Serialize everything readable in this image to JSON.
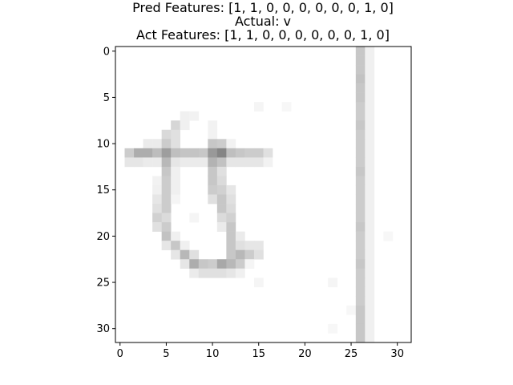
{
  "chart_data": {
    "type": "heatmap",
    "title_lines": [
      "Pred Features: [1, 1, 0, 0, 0, 0, 0, 0, 1, 0]",
      "Actual: v",
      "Act Features: [1, 1, 0, 0, 0, 0, 0, 0, 1, 0]"
    ],
    "pred_features": [
      1,
      1,
      0,
      0,
      0,
      0,
      0,
      0,
      1,
      0
    ],
    "actual_label": "v",
    "act_features": [
      1,
      1,
      0,
      0,
      0,
      0,
      0,
      0,
      1,
      0
    ],
    "xlabel": "",
    "ylabel": "",
    "xlim": [
      -0.5,
      31.5
    ],
    "ylim": [
      31.5,
      -0.5
    ],
    "x_ticks": [
      0,
      5,
      10,
      15,
      20,
      25,
      30
    ],
    "y_ticks": [
      0,
      5,
      10,
      15,
      20,
      25,
      30
    ],
    "colormap": "gray_r",
    "width": 32,
    "height": 32,
    "cells": [
      [
        26,
        0,
        0.22
      ],
      [
        27,
        0,
        0.06
      ],
      [
        26,
        1,
        0.22
      ],
      [
        27,
        1,
        0.06
      ],
      [
        26,
        2,
        0.22
      ],
      [
        27,
        2,
        0.06
      ],
      [
        26,
        3,
        0.24
      ],
      [
        27,
        3,
        0.06
      ],
      [
        26,
        4,
        0.22
      ],
      [
        27,
        4,
        0.06
      ],
      [
        26,
        5,
        0.22
      ],
      [
        27,
        5,
        0.06
      ],
      [
        15,
        6,
        0.04
      ],
      [
        18,
        6,
        0.03
      ],
      [
        26,
        6,
        0.2
      ],
      [
        27,
        6,
        0.06
      ],
      [
        7,
        7,
        0.06
      ],
      [
        8,
        7,
        0.05
      ],
      [
        26,
        7,
        0.2
      ],
      [
        27,
        7,
        0.06
      ],
      [
        6,
        8,
        0.16
      ],
      [
        7,
        8,
        0.06
      ],
      [
        10,
        8,
        0.05
      ],
      [
        26,
        8,
        0.22
      ],
      [
        27,
        8,
        0.06
      ],
      [
        5,
        9,
        0.15
      ],
      [
        6,
        9,
        0.12
      ],
      [
        10,
        9,
        0.05
      ],
      [
        26,
        9,
        0.2
      ],
      [
        27,
        9,
        0.06
      ],
      [
        3,
        10,
        0.08
      ],
      [
        4,
        10,
        0.08
      ],
      [
        5,
        10,
        0.2
      ],
      [
        6,
        10,
        0.12
      ],
      [
        10,
        10,
        0.22
      ],
      [
        11,
        10,
        0.2
      ],
      [
        12,
        10,
        0.05
      ],
      [
        26,
        10,
        0.2
      ],
      [
        27,
        10,
        0.06
      ],
      [
        1,
        11,
        0.2
      ],
      [
        2,
        11,
        0.32
      ],
      [
        3,
        11,
        0.32
      ],
      [
        4,
        11,
        0.26
      ],
      [
        5,
        11,
        0.38
      ],
      [
        6,
        11,
        0.25
      ],
      [
        7,
        11,
        0.23
      ],
      [
        8,
        11,
        0.23
      ],
      [
        9,
        11,
        0.22
      ],
      [
        10,
        11,
        0.4
      ],
      [
        11,
        11,
        0.48
      ],
      [
        12,
        11,
        0.25
      ],
      [
        13,
        11,
        0.22
      ],
      [
        14,
        11,
        0.2
      ],
      [
        15,
        11,
        0.2
      ],
      [
        16,
        11,
        0.12
      ],
      [
        26,
        11,
        0.2
      ],
      [
        27,
        11,
        0.06
      ],
      [
        1,
        12,
        0.1
      ],
      [
        2,
        12,
        0.1
      ],
      [
        3,
        12,
        0.08
      ],
      [
        4,
        12,
        0.08
      ],
      [
        5,
        12,
        0.28
      ],
      [
        6,
        12,
        0.1
      ],
      [
        7,
        12,
        0.08
      ],
      [
        8,
        12,
        0.08
      ],
      [
        9,
        12,
        0.08
      ],
      [
        10,
        12,
        0.3
      ],
      [
        11,
        12,
        0.24
      ],
      [
        12,
        12,
        0.1
      ],
      [
        13,
        12,
        0.1
      ],
      [
        14,
        12,
        0.1
      ],
      [
        15,
        12,
        0.1
      ],
      [
        16,
        12,
        0.05
      ],
      [
        26,
        12,
        0.2
      ],
      [
        27,
        12,
        0.06
      ],
      [
        5,
        13,
        0.22
      ],
      [
        6,
        13,
        0.06
      ],
      [
        10,
        13,
        0.22
      ],
      [
        11,
        13,
        0.12
      ],
      [
        26,
        13,
        0.22
      ],
      [
        27,
        13,
        0.06
      ],
      [
        4,
        14,
        0.05
      ],
      [
        5,
        14,
        0.2
      ],
      [
        6,
        14,
        0.06
      ],
      [
        10,
        14,
        0.22
      ],
      [
        11,
        14,
        0.14
      ],
      [
        26,
        14,
        0.2
      ],
      [
        27,
        14,
        0.06
      ],
      [
        4,
        15,
        0.06
      ],
      [
        5,
        15,
        0.2
      ],
      [
        6,
        15,
        0.06
      ],
      [
        10,
        15,
        0.2
      ],
      [
        11,
        15,
        0.18
      ],
      [
        12,
        15,
        0.1
      ],
      [
        26,
        15,
        0.2
      ],
      [
        27,
        15,
        0.06
      ],
      [
        4,
        16,
        0.1
      ],
      [
        5,
        16,
        0.2
      ],
      [
        6,
        16,
        0.04
      ],
      [
        10,
        16,
        0.12
      ],
      [
        11,
        16,
        0.22
      ],
      [
        12,
        16,
        0.12
      ],
      [
        26,
        16,
        0.2
      ],
      [
        27,
        16,
        0.06
      ],
      [
        4,
        17,
        0.12
      ],
      [
        5,
        17,
        0.2
      ],
      [
        11,
        17,
        0.22
      ],
      [
        12,
        17,
        0.14
      ],
      [
        26,
        17,
        0.2
      ],
      [
        27,
        17,
        0.06
      ],
      [
        4,
        18,
        0.18
      ],
      [
        5,
        18,
        0.14
      ],
      [
        8,
        18,
        0.04
      ],
      [
        11,
        18,
        0.14
      ],
      [
        12,
        18,
        0.18
      ],
      [
        26,
        18,
        0.2
      ],
      [
        27,
        18,
        0.06
      ],
      [
        4,
        19,
        0.12
      ],
      [
        5,
        19,
        0.2
      ],
      [
        11,
        19,
        0.08
      ],
      [
        12,
        19,
        0.22
      ],
      [
        26,
        19,
        0.22
      ],
      [
        27,
        19,
        0.06
      ],
      [
        5,
        20,
        0.24
      ],
      [
        6,
        20,
        0.06
      ],
      [
        12,
        20,
        0.22
      ],
      [
        13,
        20,
        0.08
      ],
      [
        26,
        20,
        0.2
      ],
      [
        27,
        20,
        0.06
      ],
      [
        29,
        20,
        0.03
      ],
      [
        5,
        21,
        0.1
      ],
      [
        6,
        21,
        0.22
      ],
      [
        7,
        21,
        0.06
      ],
      [
        12,
        21,
        0.22
      ],
      [
        13,
        21,
        0.12
      ],
      [
        14,
        21,
        0.1
      ],
      [
        15,
        21,
        0.1
      ],
      [
        26,
        21,
        0.2
      ],
      [
        27,
        21,
        0.06
      ],
      [
        6,
        22,
        0.1
      ],
      [
        7,
        22,
        0.28
      ],
      [
        8,
        22,
        0.12
      ],
      [
        12,
        22,
        0.22
      ],
      [
        13,
        22,
        0.28
      ],
      [
        14,
        22,
        0.2
      ],
      [
        15,
        22,
        0.12
      ],
      [
        26,
        22,
        0.2
      ],
      [
        27,
        22,
        0.06
      ],
      [
        7,
        23,
        0.1
      ],
      [
        8,
        23,
        0.32
      ],
      [
        9,
        23,
        0.22
      ],
      [
        10,
        23,
        0.2
      ],
      [
        11,
        23,
        0.34
      ],
      [
        12,
        23,
        0.28
      ],
      [
        13,
        23,
        0.2
      ],
      [
        14,
        23,
        0.04
      ],
      [
        26,
        23,
        0.22
      ],
      [
        27,
        23,
        0.06
      ],
      [
        8,
        24,
        0.08
      ],
      [
        9,
        24,
        0.12
      ],
      [
        10,
        24,
        0.12
      ],
      [
        11,
        24,
        0.12
      ],
      [
        12,
        24,
        0.1
      ],
      [
        13,
        24,
        0.06
      ],
      [
        26,
        24,
        0.2
      ],
      [
        27,
        24,
        0.06
      ],
      [
        15,
        25,
        0.04
      ],
      [
        23,
        25,
        0.04
      ],
      [
        26,
        25,
        0.2
      ],
      [
        27,
        25,
        0.06
      ],
      [
        26,
        26,
        0.2
      ],
      [
        27,
        26,
        0.06
      ],
      [
        26,
        27,
        0.2
      ],
      [
        27,
        27,
        0.06
      ],
      [
        25,
        28,
        0.03
      ],
      [
        26,
        28,
        0.22
      ],
      [
        27,
        28,
        0.06
      ],
      [
        26,
        29,
        0.22
      ],
      [
        27,
        29,
        0.06
      ],
      [
        23,
        30,
        0.03
      ],
      [
        26,
        30,
        0.22
      ],
      [
        27,
        30,
        0.06
      ],
      [
        26,
        31,
        0.22
      ],
      [
        27,
        31,
        0.06
      ]
    ]
  }
}
